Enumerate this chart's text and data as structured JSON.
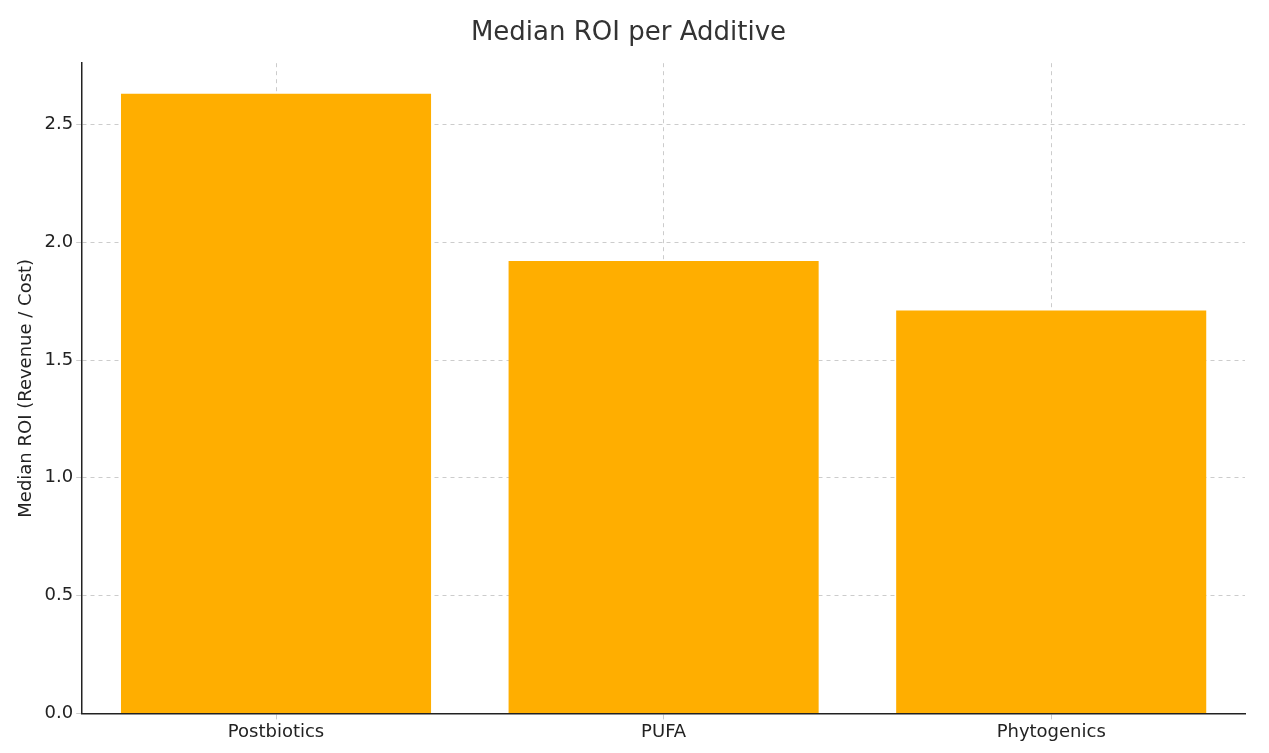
{
  "chart_data": {
    "type": "bar",
    "title": "Median ROI per Additive",
    "ylabel": "Median ROI (Revenue / Cost)",
    "categories": [
      "Postbiotics",
      "PUFA",
      "Phytogenics"
    ],
    "values": [
      2.63,
      1.92,
      1.71
    ],
    "color": "#ffae00",
    "ylim": [
      0,
      2.76
    ],
    "yticks": [
      {
        "value": 0,
        "label": "0.0"
      },
      0.5,
      {
        "value": 1,
        "label": "1.0"
      },
      1.5,
      {
        "value": 2,
        "label": "2.0"
      },
      2.5
    ],
    "grid": true
  }
}
